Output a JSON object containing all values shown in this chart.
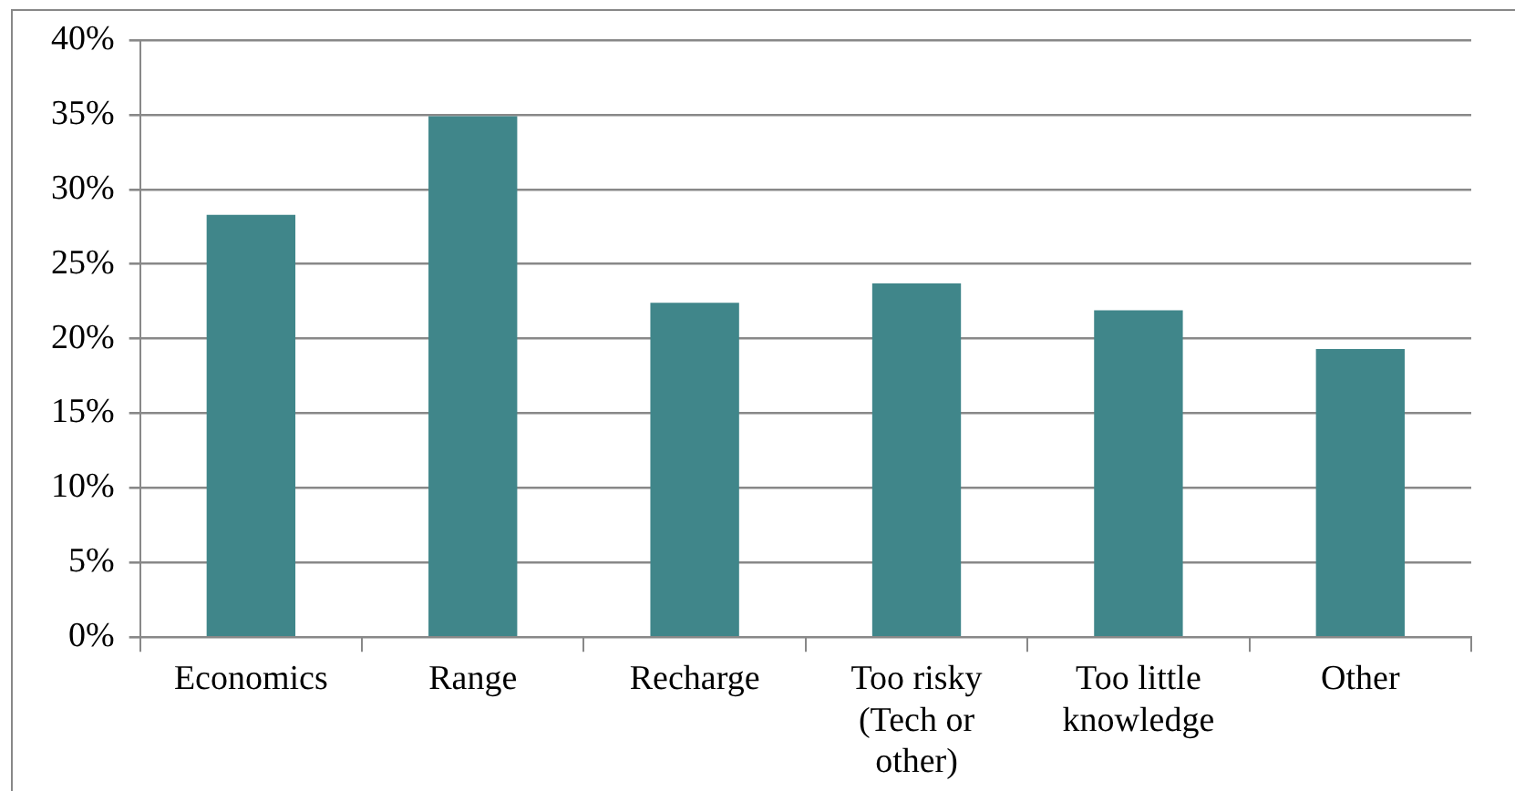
{
  "chart_data": {
    "type": "bar",
    "categories": [
      "Economics",
      "Range",
      "Recharge",
      "Too risky\n(Tech or\nother)",
      "Too little\nknowledge",
      "Other"
    ],
    "values": [
      28.3,
      34.9,
      22.4,
      23.7,
      21.9,
      19.3
    ],
    "color": "#40868a",
    "ylim": [
      0,
      40
    ],
    "yticks": [
      {
        "value": 0,
        "label": "0%"
      },
      {
        "value": 5,
        "label": "5%"
      },
      {
        "value": 10,
        "label": "10%"
      },
      {
        "value": 15,
        "label": "15%"
      },
      {
        "value": 20,
        "label": "20%"
      },
      {
        "value": 25,
        "label": "25%"
      },
      {
        "value": 30,
        "label": "30%"
      },
      {
        "value": 35,
        "label": "35%"
      },
      {
        "value": 40,
        "label": "40%"
      }
    ],
    "grid": "y",
    "legend": false
  }
}
